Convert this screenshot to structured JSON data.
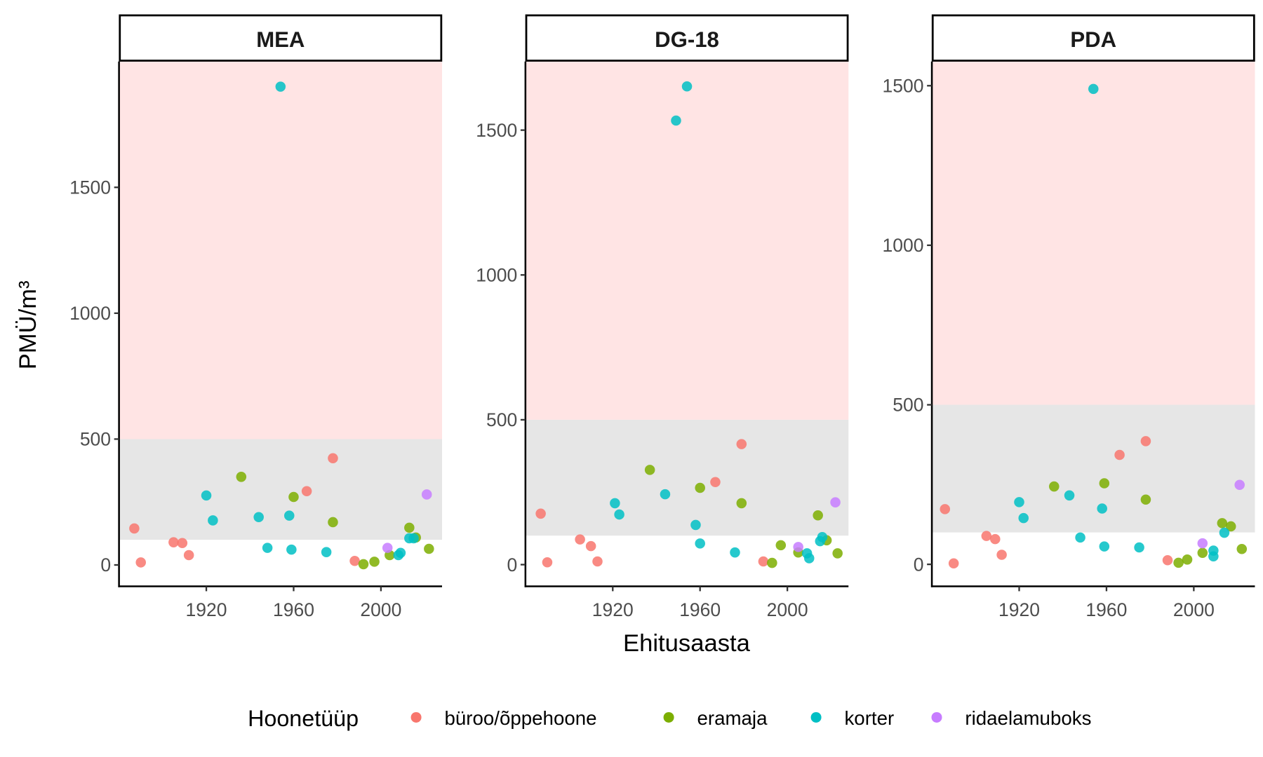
{
  "chart_data": {
    "type": "scatter",
    "xlabel": "Ehitusaasta",
    "ylabel": "PMÜ/m³",
    "legend": {
      "title": "Hoonetüüp",
      "placement": "bottom",
      "entries": [
        {
          "key": "buroo",
          "label": "büroo/õppehoone",
          "color": "#F8766D"
        },
        {
          "key": "eramaja",
          "label": "eramaja",
          "color": "#7CAE00"
        },
        {
          "key": "korter",
          "label": "korter",
          "color": "#00BFC4"
        },
        {
          "key": "ridaelamuboks",
          "label": "ridaelamuboks",
          "color": "#C77CFF"
        }
      ]
    },
    "bands": [
      {
        "name": "elevated",
        "from": 500,
        "to": "top",
        "color": "#FFE4E4"
      },
      {
        "name": "moderate",
        "from": 100,
        "to": 500,
        "color": "#E6E6E6"
      }
    ],
    "xlim": [
      1880,
      2028
    ],
    "xticks": [
      1920,
      1960,
      2000
    ],
    "panels": [
      {
        "title": "MEA",
        "ylim": [
          -85,
          2000
        ],
        "yticks": [
          0,
          500,
          1000,
          1500
        ],
        "points": [
          {
            "x": 1887,
            "y": 145,
            "type": "buroo"
          },
          {
            "x": 1890,
            "y": 10,
            "type": "buroo"
          },
          {
            "x": 1905,
            "y": 90,
            "type": "buroo"
          },
          {
            "x": 1909,
            "y": 87,
            "type": "buroo"
          },
          {
            "x": 1912,
            "y": 39,
            "type": "buroo"
          },
          {
            "x": 1966,
            "y": 293,
            "type": "buroo"
          },
          {
            "x": 1978,
            "y": 424,
            "type": "buroo"
          },
          {
            "x": 1988,
            "y": 16,
            "type": "buroo"
          },
          {
            "x": 1936,
            "y": 350,
            "type": "eramaja"
          },
          {
            "x": 1960,
            "y": 270,
            "type": "eramaja"
          },
          {
            "x": 1978,
            "y": 170,
            "type": "eramaja"
          },
          {
            "x": 1992,
            "y": 3,
            "type": "eramaja"
          },
          {
            "x": 1997,
            "y": 13,
            "type": "eramaja"
          },
          {
            "x": 2004,
            "y": 39,
            "type": "eramaja"
          },
          {
            "x": 2013,
            "y": 148,
            "type": "eramaja"
          },
          {
            "x": 2016,
            "y": 109,
            "type": "eramaja"
          },
          {
            "x": 2022,
            "y": 64,
            "type": "eramaja"
          },
          {
            "x": 1920,
            "y": 276,
            "type": "korter"
          },
          {
            "x": 1923,
            "y": 177,
            "type": "korter"
          },
          {
            "x": 1944,
            "y": 190,
            "type": "korter"
          },
          {
            "x": 1954,
            "y": 1900,
            "type": "korter"
          },
          {
            "x": 1948,
            "y": 68,
            "type": "korter"
          },
          {
            "x": 1958,
            "y": 196,
            "type": "korter"
          },
          {
            "x": 1959,
            "y": 61,
            "type": "korter"
          },
          {
            "x": 1975,
            "y": 51,
            "type": "korter"
          },
          {
            "x": 2008,
            "y": 39,
            "type": "korter"
          },
          {
            "x": 2009,
            "y": 48,
            "type": "korter"
          },
          {
            "x": 2013,
            "y": 106,
            "type": "korter"
          },
          {
            "x": 2015,
            "y": 106,
            "type": "korter"
          },
          {
            "x": 2003,
            "y": 68,
            "type": "ridaelamuboks"
          },
          {
            "x": 2021,
            "y": 280,
            "type": "ridaelamuboks"
          }
        ]
      },
      {
        "title": "DG-18",
        "ylim": [
          -75,
          1737
        ],
        "yticks": [
          0,
          500,
          1000,
          1500
        ],
        "points": [
          {
            "x": 1887,
            "y": 176,
            "type": "buroo"
          },
          {
            "x": 1890,
            "y": 8,
            "type": "buroo"
          },
          {
            "x": 1905,
            "y": 87,
            "type": "buroo"
          },
          {
            "x": 1910,
            "y": 64,
            "type": "buroo"
          },
          {
            "x": 1913,
            "y": 11,
            "type": "buroo"
          },
          {
            "x": 1967,
            "y": 285,
            "type": "buroo"
          },
          {
            "x": 1979,
            "y": 416,
            "type": "buroo"
          },
          {
            "x": 1989,
            "y": 11,
            "type": "buroo"
          },
          {
            "x": 1937,
            "y": 327,
            "type": "eramaja"
          },
          {
            "x": 1960,
            "y": 265,
            "type": "eramaja"
          },
          {
            "x": 1979,
            "y": 212,
            "type": "eramaja"
          },
          {
            "x": 1993,
            "y": 6,
            "type": "eramaja"
          },
          {
            "x": 1997,
            "y": 67,
            "type": "eramaja"
          },
          {
            "x": 2005,
            "y": 42,
            "type": "eramaja"
          },
          {
            "x": 2014,
            "y": 170,
            "type": "eramaja"
          },
          {
            "x": 2018,
            "y": 84,
            "type": "eramaja"
          },
          {
            "x": 2023,
            "y": 39,
            "type": "eramaja"
          },
          {
            "x": 1921,
            "y": 212,
            "type": "korter"
          },
          {
            "x": 1923,
            "y": 173,
            "type": "korter"
          },
          {
            "x": 1944,
            "y": 243,
            "type": "korter"
          },
          {
            "x": 1949,
            "y": 1533,
            "type": "korter"
          },
          {
            "x": 1954,
            "y": 1651,
            "type": "korter"
          },
          {
            "x": 1958,
            "y": 137,
            "type": "korter"
          },
          {
            "x": 1960,
            "y": 73,
            "type": "korter"
          },
          {
            "x": 1976,
            "y": 42,
            "type": "korter"
          },
          {
            "x": 2009,
            "y": 39,
            "type": "korter"
          },
          {
            "x": 2010,
            "y": 22,
            "type": "korter"
          },
          {
            "x": 2015,
            "y": 81,
            "type": "korter"
          },
          {
            "x": 2016,
            "y": 95,
            "type": "korter"
          },
          {
            "x": 2005,
            "y": 61,
            "type": "ridaelamuboks"
          },
          {
            "x": 2022,
            "y": 215,
            "type": "ridaelamuboks"
          }
        ]
      },
      {
        "title": "PDA",
        "ylim": [
          -69,
          1576
        ],
        "yticks": [
          0,
          500,
          1000,
          1500
        ],
        "points": [
          {
            "x": 1886,
            "y": 173,
            "type": "buroo"
          },
          {
            "x": 1890,
            "y": 3,
            "type": "buroo"
          },
          {
            "x": 1905,
            "y": 89,
            "type": "buroo"
          },
          {
            "x": 1909,
            "y": 79,
            "type": "buroo"
          },
          {
            "x": 1912,
            "y": 30,
            "type": "buroo"
          },
          {
            "x": 1966,
            "y": 343,
            "type": "buroo"
          },
          {
            "x": 1978,
            "y": 386,
            "type": "buroo"
          },
          {
            "x": 1988,
            "y": 13,
            "type": "buroo"
          },
          {
            "x": 1936,
            "y": 244,
            "type": "eramaja"
          },
          {
            "x": 1959,
            "y": 254,
            "type": "eramaja"
          },
          {
            "x": 1978,
            "y": 203,
            "type": "eramaja"
          },
          {
            "x": 1993,
            "y": 5,
            "type": "eramaja"
          },
          {
            "x": 1997,
            "y": 15,
            "type": "eramaja"
          },
          {
            "x": 2004,
            "y": 36,
            "type": "eramaja"
          },
          {
            "x": 2013,
            "y": 129,
            "type": "eramaja"
          },
          {
            "x": 2017,
            "y": 119,
            "type": "eramaja"
          },
          {
            "x": 2022,
            "y": 48,
            "type": "eramaja"
          },
          {
            "x": 1920,
            "y": 195,
            "type": "korter"
          },
          {
            "x": 1922,
            "y": 145,
            "type": "korter"
          },
          {
            "x": 1943,
            "y": 216,
            "type": "korter"
          },
          {
            "x": 1954,
            "y": 1490,
            "type": "korter"
          },
          {
            "x": 1948,
            "y": 84,
            "type": "korter"
          },
          {
            "x": 1958,
            "y": 175,
            "type": "korter"
          },
          {
            "x": 1959,
            "y": 56,
            "type": "korter"
          },
          {
            "x": 1975,
            "y": 53,
            "type": "korter"
          },
          {
            "x": 2009,
            "y": 43,
            "type": "korter"
          },
          {
            "x": 2009,
            "y": 25,
            "type": "korter"
          },
          {
            "x": 2014,
            "y": 99,
            "type": "korter"
          },
          {
            "x": 2004,
            "y": 66,
            "type": "ridaelamuboks"
          },
          {
            "x": 2021,
            "y": 249,
            "type": "ridaelamuboks"
          }
        ]
      }
    ]
  }
}
